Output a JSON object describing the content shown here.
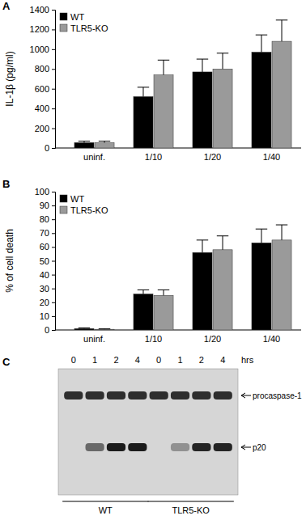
{
  "chart_data": [
    {
      "type": "bar",
      "title": "A",
      "y_label": "IL-1β (pg/ml)",
      "categories": [
        "uninf.",
        "1/10",
        "1/20",
        "1/40"
      ],
      "series": [
        {
          "name": "WT",
          "color": "#000000",
          "values": [
            55,
            520,
            770,
            970
          ],
          "errors": [
            15,
            95,
            130,
            175
          ]
        },
        {
          "name": "TLR5-KO",
          "color": "#9a9a9a",
          "values": [
            55,
            740,
            800,
            1080
          ],
          "errors": [
            15,
            150,
            160,
            215
          ]
        }
      ],
      "ylim": [
        0,
        1400
      ],
      "yticks": [
        0,
        200,
        400,
        600,
        800,
        1000,
        1200,
        1400
      ],
      "legend": "upper left"
    },
    {
      "type": "bar",
      "title": "B",
      "y_label": "% of cell death",
      "categories": [
        "uninf.",
        "1/10",
        "1/20",
        "1/40"
      ],
      "series": [
        {
          "name": "WT",
          "color": "#000000",
          "values": [
            1,
            26,
            56,
            63
          ],
          "errors": [
            0.5,
            3,
            9,
            10
          ]
        },
        {
          "name": "TLR5-KO",
          "color": "#9a9a9a",
          "values": [
            0.5,
            25,
            58,
            65
          ],
          "errors": [
            0.3,
            4,
            10,
            11
          ]
        }
      ],
      "ylim": [
        0,
        100
      ],
      "yticks": [
        0,
        10,
        20,
        30,
        40,
        50,
        60,
        70,
        80,
        90,
        100
      ],
      "legend": "upper left"
    }
  ],
  "blot": {
    "title": "C",
    "time_unit": "hrs",
    "groups": [
      {
        "label": "WT",
        "lanes": [
          "0",
          "1",
          "2",
          "4"
        ]
      },
      {
        "label": "TLR5-KO",
        "lanes": [
          "0",
          "1",
          "2",
          "4"
        ]
      }
    ],
    "bands": [
      {
        "label": "procaspase-1",
        "intensity": [
          0.85,
          0.85,
          0.85,
          0.85,
          0.85,
          0.85,
          0.85,
          0.85
        ]
      },
      {
        "label": "p20",
        "intensity": [
          0,
          0.55,
          0.95,
          0.95,
          0,
          0.35,
          0.9,
          0.9
        ]
      }
    ]
  }
}
